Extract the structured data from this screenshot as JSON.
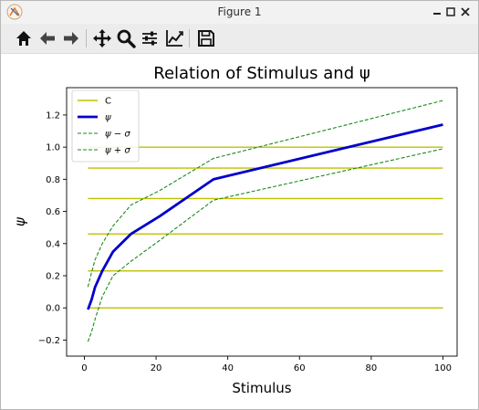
{
  "window": {
    "title": "Figure 1",
    "icons": [
      "app-icon",
      "minimize-icon",
      "maximize-icon",
      "close-icon"
    ]
  },
  "toolbar": {
    "buttons": [
      {
        "name": "home-icon"
      },
      {
        "name": "back-arrow-icon"
      },
      {
        "name": "forward-arrow-icon"
      },
      {
        "name": "pan-icon"
      },
      {
        "name": "zoom-icon"
      },
      {
        "name": "configure-subplots-icon"
      },
      {
        "name": "edit-axis-icon"
      },
      {
        "name": "save-icon"
      }
    ]
  },
  "chart_data": {
    "type": "line",
    "title": "Relation of Stimulus and ψ",
    "xlabel": "Stimulus",
    "ylabel": "ψ",
    "xlim": [
      -4.95,
      103.95
    ],
    "ylim": [
      -0.3,
      1.37
    ],
    "xticks": [
      0,
      20,
      40,
      60,
      80,
      100
    ],
    "xtick_labels": [
      "0",
      "20",
      "40",
      "60",
      "80",
      "100"
    ],
    "yticks": [
      -0.2,
      0.0,
      0.2,
      0.4,
      0.6,
      0.8,
      1.0,
      1.2
    ],
    "ytick_labels": [
      "−0.2",
      "0.0",
      "0.2",
      "0.4",
      "0.6",
      "0.8",
      "1.0",
      "1.2"
    ],
    "grid": false,
    "legend_position": "upper-left",
    "x": [
      1,
      2,
      3,
      5,
      8,
      13,
      21,
      36,
      100
    ],
    "hlines": {
      "name": "C",
      "color": "#bfbf00",
      "x_range": [
        1,
        100
      ],
      "values": [
        0.0,
        0.23,
        0.46,
        0.68,
        0.87,
        1.0
      ]
    },
    "series": [
      {
        "name": "ψ",
        "color": "#0000cc",
        "style": "solid",
        "values": [
          -0.01,
          0.05,
          0.13,
          0.23,
          0.35,
          0.46,
          0.57,
          0.8,
          1.14
        ]
      },
      {
        "name": "ψ − σ",
        "color": "#1a8a1a",
        "style": "dashed",
        "values": [
          -0.21,
          -0.15,
          -0.07,
          0.07,
          0.2,
          0.29,
          0.42,
          0.67,
          0.99
        ]
      },
      {
        "name": "ψ + σ",
        "color": "#1a8a1a",
        "style": "dashed",
        "values": [
          0.13,
          0.22,
          0.3,
          0.4,
          0.51,
          0.64,
          0.73,
          0.93,
          1.29
        ]
      }
    ]
  }
}
